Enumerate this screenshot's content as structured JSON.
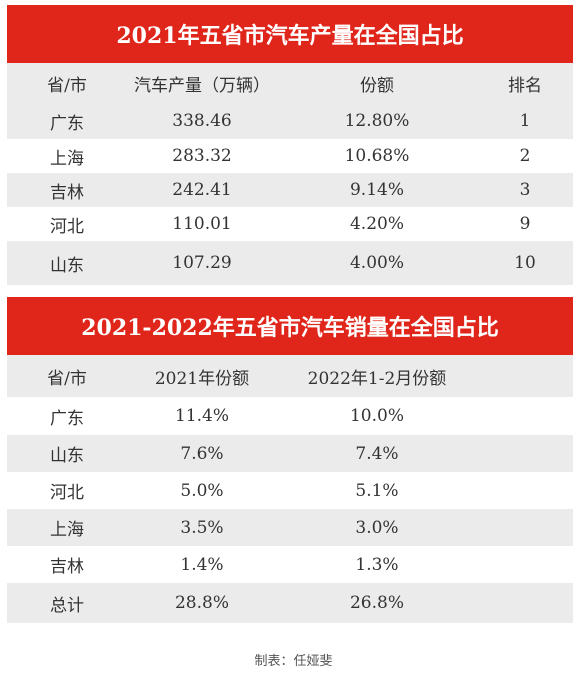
{
  "table1": {
    "title": "2021年五省市汽车产量在全国占比",
    "headers": [
      "省/市",
      "汽车产量（万辆）",
      "份额",
      "排名"
    ],
    "rows": [
      [
        "广东",
        "338.46",
        "12.80%",
        "1"
      ],
      [
        "上海",
        "283.32",
        "10.68%",
        "2"
      ],
      [
        "吉林",
        "242.41",
        "9.14%",
        "3"
      ],
      [
        "河北",
        "110.01",
        "4.20%",
        "9"
      ],
      [
        "山东",
        "107.29",
        "4.00%",
        "10"
      ]
    ]
  },
  "table2": {
    "title": "2021-2022年五省市汽车销量在全国占比",
    "headers": [
      "省/市",
      "2021年份额",
      "2022年1-2月份额",
      ""
    ],
    "rows": [
      [
        "广东",
        "11.4%",
        "10.0%",
        ""
      ],
      [
        "山东",
        "7.6%",
        "7.4%",
        ""
      ],
      [
        "河北",
        "5.0%",
        "5.1%",
        ""
      ],
      [
        "上海",
        "3.5%",
        "3.0%",
        ""
      ],
      [
        "吉林",
        "1.4%",
        "1.3%",
        ""
      ],
      [
        "总计",
        "28.8%",
        "26.8%",
        ""
      ]
    ]
  },
  "caption": "制表：任娅斐",
  "colors": {
    "title_bg": "#e0261b",
    "row_shaded": "#ebebeb"
  }
}
